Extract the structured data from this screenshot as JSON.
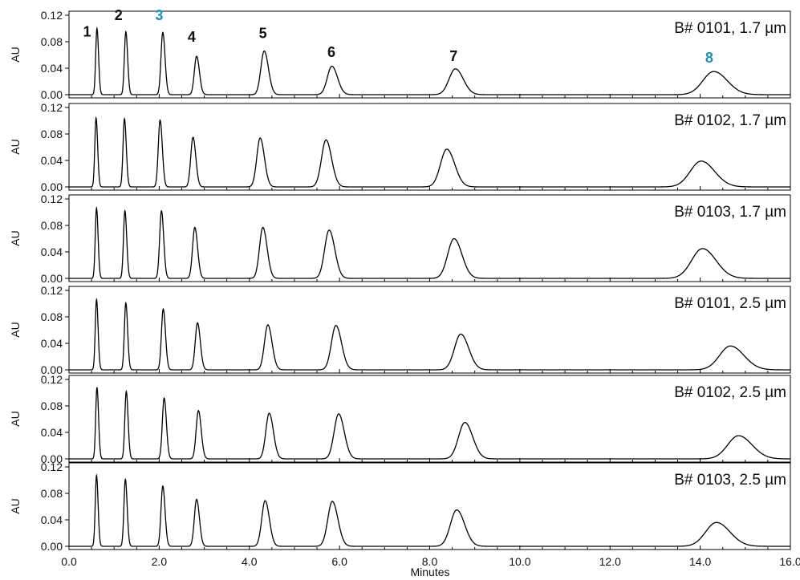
{
  "chart_data": {
    "type": "line",
    "xlabel": "Minutes",
    "xlim": [
      0,
      16
    ],
    "x_ticks": [
      "0.0",
      "2.0",
      "4.0",
      "6.0",
      "8.0",
      "10.0",
      "12.0",
      "14.0",
      "16.0"
    ],
    "ylabel": "AU",
    "ylim": [
      0,
      0.12
    ],
    "y_ticks": [
      "0.00",
      "0.04",
      "0.08",
      "0.12"
    ],
    "grid": false,
    "peak_labels": [
      {
        "text": "1",
        "x": 0.4,
        "y": 0.095,
        "color": "#111111"
      },
      {
        "text": "2",
        "x": 1.1,
        "y": 0.12,
        "color": "#111111"
      },
      {
        "text": "3",
        "x": 2.0,
        "y": 0.12,
        "color": "#1f8fb8"
      },
      {
        "text": "4",
        "x": 2.72,
        "y": 0.087,
        "color": "#111111"
      },
      {
        "text": "5",
        "x": 4.3,
        "y": 0.093,
        "color": "#111111"
      },
      {
        "text": "6",
        "x": 5.82,
        "y": 0.064,
        "color": "#111111"
      },
      {
        "text": "7",
        "x": 8.53,
        "y": 0.058,
        "color": "#111111"
      },
      {
        "text": "8",
        "x": 14.2,
        "y": 0.056,
        "color": "#1f8fb8"
      }
    ],
    "series": [
      {
        "name": "B# 0101, 1.7 µm",
        "peaks": [
          {
            "rt": 0.62,
            "height": 0.1,
            "width": 0.028
          },
          {
            "rt": 1.26,
            "height": 0.095,
            "width": 0.032
          },
          {
            "rt": 2.08,
            "height": 0.094,
            "width": 0.04
          },
          {
            "rt": 2.83,
            "height": 0.058,
            "width": 0.05
          },
          {
            "rt": 4.33,
            "height": 0.066,
            "width": 0.075
          },
          {
            "rt": 5.83,
            "height": 0.043,
            "width": 0.1
          },
          {
            "rt": 8.57,
            "height": 0.039,
            "width": 0.14
          },
          {
            "rt": 14.3,
            "height": 0.035,
            "width": 0.24
          }
        ]
      },
      {
        "name": "B# 0102, 1.7 µm",
        "peaks": [
          {
            "rt": 0.6,
            "height": 0.104,
            "width": 0.028
          },
          {
            "rt": 1.23,
            "height": 0.103,
            "width": 0.032
          },
          {
            "rt": 2.02,
            "height": 0.101,
            "width": 0.04
          },
          {
            "rt": 2.75,
            "height": 0.075,
            "width": 0.05
          },
          {
            "rt": 4.24,
            "height": 0.074,
            "width": 0.075
          },
          {
            "rt": 5.7,
            "height": 0.071,
            "width": 0.1
          },
          {
            "rt": 8.38,
            "height": 0.057,
            "width": 0.14
          },
          {
            "rt": 14.02,
            "height": 0.039,
            "width": 0.24
          }
        ]
      },
      {
        "name": "B# 0103, 1.7 µm",
        "peaks": [
          {
            "rt": 0.61,
            "height": 0.106,
            "width": 0.028
          },
          {
            "rt": 1.24,
            "height": 0.102,
            "width": 0.032
          },
          {
            "rt": 2.05,
            "height": 0.102,
            "width": 0.04
          },
          {
            "rt": 2.79,
            "height": 0.077,
            "width": 0.05
          },
          {
            "rt": 4.3,
            "height": 0.077,
            "width": 0.075
          },
          {
            "rt": 5.77,
            "height": 0.073,
            "width": 0.1
          },
          {
            "rt": 8.54,
            "height": 0.06,
            "width": 0.14
          },
          {
            "rt": 14.05,
            "height": 0.045,
            "width": 0.24
          }
        ]
      },
      {
        "name": "B# 0101, 2.5 µm",
        "peaks": [
          {
            "rt": 0.61,
            "height": 0.106,
            "width": 0.028
          },
          {
            "rt": 1.26,
            "height": 0.101,
            "width": 0.032
          },
          {
            "rt": 2.09,
            "height": 0.092,
            "width": 0.04
          },
          {
            "rt": 2.85,
            "height": 0.071,
            "width": 0.05
          },
          {
            "rt": 4.41,
            "height": 0.068,
            "width": 0.075
          },
          {
            "rt": 5.92,
            "height": 0.067,
            "width": 0.1
          },
          {
            "rt": 8.69,
            "height": 0.054,
            "width": 0.14
          },
          {
            "rt": 14.67,
            "height": 0.036,
            "width": 0.24
          }
        ]
      },
      {
        "name": "B# 0102, 2.5 µm",
        "peaks": [
          {
            "rt": 0.62,
            "height": 0.108,
            "width": 0.028
          },
          {
            "rt": 1.27,
            "height": 0.102,
            "width": 0.032
          },
          {
            "rt": 2.11,
            "height": 0.092,
            "width": 0.04
          },
          {
            "rt": 2.87,
            "height": 0.073,
            "width": 0.05
          },
          {
            "rt": 4.44,
            "height": 0.069,
            "width": 0.075
          },
          {
            "rt": 5.98,
            "height": 0.068,
            "width": 0.1
          },
          {
            "rt": 8.78,
            "height": 0.055,
            "width": 0.14
          },
          {
            "rt": 14.85,
            "height": 0.035,
            "width": 0.24
          }
        ]
      },
      {
        "name": "B# 0103, 2.5 µm",
        "peaks": [
          {
            "rt": 0.61,
            "height": 0.107,
            "width": 0.028
          },
          {
            "rt": 1.25,
            "height": 0.101,
            "width": 0.032
          },
          {
            "rt": 2.08,
            "height": 0.091,
            "width": 0.04
          },
          {
            "rt": 2.83,
            "height": 0.071,
            "width": 0.05
          },
          {
            "rt": 4.35,
            "height": 0.069,
            "width": 0.075
          },
          {
            "rt": 5.84,
            "height": 0.068,
            "width": 0.1
          },
          {
            "rt": 8.6,
            "height": 0.055,
            "width": 0.14
          },
          {
            "rt": 14.36,
            "height": 0.036,
            "width": 0.24
          }
        ]
      }
    ]
  }
}
